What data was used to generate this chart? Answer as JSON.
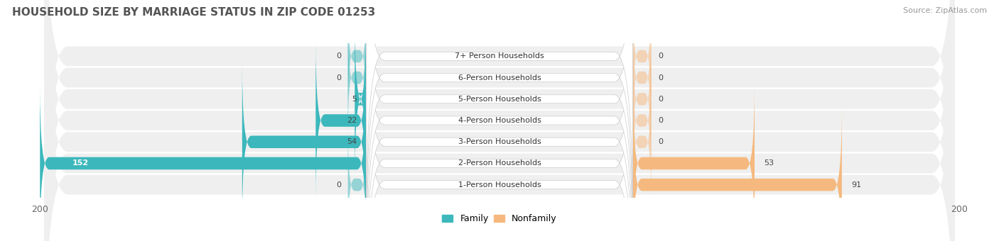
{
  "title": "HOUSEHOLD SIZE BY MARRIAGE STATUS IN ZIP CODE 01253",
  "source": "Source: ZipAtlas.com",
  "categories": [
    "1-Person Households",
    "2-Person Households",
    "3-Person Households",
    "4-Person Households",
    "5-Person Households",
    "6-Person Households",
    "7+ Person Households"
  ],
  "family": [
    0,
    152,
    54,
    22,
    5,
    0,
    0
  ],
  "nonfamily": [
    91,
    53,
    0,
    0,
    0,
    0,
    0
  ],
  "min_stub": 8,
  "xlim": 200,
  "family_color": "#3cb8bc",
  "family_color_dark": "#1fa0a4",
  "nonfamily_color": "#f5b97f",
  "row_bg_color": "#efefef",
  "label_box_color": "#ffffff",
  "title_fontsize": 11,
  "source_fontsize": 8,
  "value_fontsize": 8,
  "label_fontsize": 8,
  "tick_fontsize": 9,
  "bar_height": 0.58,
  "legend_family_label": "Family",
  "legend_nonfamily_label": "Nonfamily"
}
